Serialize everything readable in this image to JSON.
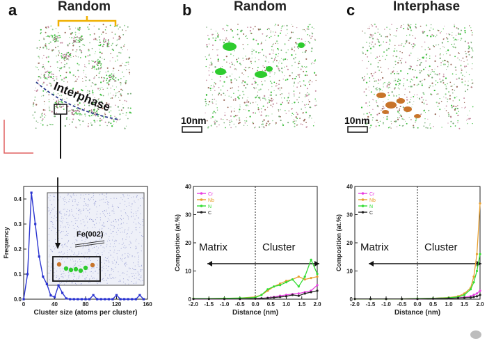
{
  "panels": {
    "a": {
      "letter": "a",
      "title": "Random",
      "interphase_label": "Interphase"
    },
    "b": {
      "letter": "b",
      "title": "Random",
      "scale_label": "10nm"
    },
    "c": {
      "letter": "c",
      "title": "Interphase",
      "scale_label": "10nm"
    }
  },
  "inset": {
    "label": "Fe(002)"
  },
  "colors": {
    "random_bracket": "#f0b000",
    "scale_bar_axes": "#e06060",
    "interphase_line": "#2b3a8c",
    "cluster_green": "#2ecc2e",
    "cluster_orange": "#c8742a",
    "cr": "#e83ee0",
    "nb": "#e8a030",
    "n": "#33dd33",
    "c": "#222222",
    "frequency_line": "#2a34d0"
  },
  "chart_data": [
    {
      "id": "frequency",
      "type": "line",
      "title": "",
      "xlabel": "Cluster size (atoms per cluster)",
      "ylabel": "Frequency",
      "xlim": [
        0,
        160
      ],
      "ylim": [
        0,
        0.45
      ],
      "xticks": [
        0,
        40,
        80,
        120,
        160
      ],
      "yticks": [
        0.0,
        0.1,
        0.2,
        0.3,
        0.4
      ],
      "xtick_labels": [
        "0",
        "40",
        "80",
        "120",
        "160"
      ],
      "ytick_labels": [
        "0.0",
        "0.1",
        "0.2",
        "0.3",
        "0.4"
      ],
      "grid": false,
      "series": [
        {
          "x": [
            0,
            5,
            10,
            15,
            20,
            25,
            30,
            35,
            40,
            45,
            50,
            55,
            60,
            65,
            70,
            75,
            80,
            85,
            90,
            95,
            100,
            105,
            110,
            115,
            120,
            125,
            130,
            135,
            140,
            145,
            150,
            155
          ],
          "y": [
            0,
            0.1,
            0.425,
            0.3,
            0.17,
            0.09,
            0.06,
            0.015,
            0.008,
            0.055,
            0.025,
            0.003,
            0,
            0,
            0,
            0,
            0,
            0,
            0.016,
            0,
            0,
            0,
            0,
            0,
            0.016,
            0,
            0,
            0,
            0,
            0,
            0.016,
            0
          ]
        }
      ]
    },
    {
      "id": "proxigram_random",
      "type": "line",
      "title": "",
      "xlabel": "Distance (nm)",
      "ylabel": "Composition (at.%)",
      "xlim": [
        -2.0,
        2.0
      ],
      "ylim": [
        0,
        40
      ],
      "xticks": [
        -2.0,
        -1.5,
        -1.0,
        -0.5,
        0.0,
        0.5,
        1.0,
        1.5,
        2.0
      ],
      "yticks": [
        0,
        10,
        20,
        30,
        40
      ],
      "xtick_labels": [
        "-2.0",
        "-1.5",
        "-1.0",
        "-0.5",
        "0.0",
        "0.5",
        "1.0",
        "1.5",
        "2.0"
      ],
      "ytick_labels": [
        "0",
        "10",
        "20",
        "30",
        "40"
      ],
      "legend": "top-left",
      "annotations": [
        "Matrix",
        "Cluster"
      ],
      "series": [
        {
          "name": "Cr",
          "x": [
            -2,
            -1.5,
            -1,
            -0.5,
            0,
            0.2,
            0.4,
            0.6,
            0.8,
            1.0,
            1.2,
            1.4,
            1.6,
            1.8,
            2.0
          ],
          "y": [
            0.1,
            0.1,
            0.1,
            0.1,
            0.2,
            0.3,
            0.5,
            0.8,
            1.2,
            1.5,
            1.8,
            2.0,
            2.5,
            3.0,
            5.0
          ]
        },
        {
          "name": "Nb",
          "x": [
            -2,
            -1.5,
            -1,
            -0.5,
            0,
            0.2,
            0.4,
            0.6,
            0.8,
            1.0,
            1.2,
            1.4,
            1.6,
            1.8,
            2.0
          ],
          "y": [
            0.2,
            0.2,
            0.3,
            0.4,
            0.8,
            1.5,
            3.0,
            4.5,
            5.5,
            6.5,
            7.0,
            8.0,
            7.0,
            7.5,
            8.0
          ]
        },
        {
          "name": "N",
          "x": [
            -2,
            -1.5,
            -1,
            -0.5,
            0,
            0.2,
            0.4,
            0.6,
            0.8,
            1.0,
            1.2,
            1.4,
            1.6,
            1.8,
            2.0
          ],
          "y": [
            0.2,
            0.2,
            0.3,
            0.4,
            0.6,
            1.5,
            3.5,
            4.5,
            5.0,
            6.0,
            7.0,
            4.5,
            8.0,
            14.0,
            9.0
          ]
        },
        {
          "name": "C",
          "x": [
            -2,
            -1.5,
            -1,
            -0.5,
            0,
            0.2,
            0.4,
            0.6,
            0.8,
            1.0,
            1.2,
            1.4,
            1.6,
            1.8,
            2.0
          ],
          "y": [
            0.1,
            0.1,
            0.1,
            0.1,
            0.2,
            0.3,
            0.4,
            0.6,
            0.8,
            1.0,
            1.5,
            1.2,
            2.0,
            2.5,
            3.0
          ]
        }
      ]
    },
    {
      "id": "proxigram_interphase",
      "type": "line",
      "title": "",
      "xlabel": "Distance (nm)",
      "ylabel": "Composition (at.%)",
      "xlim": [
        -2.0,
        2.0
      ],
      "ylim": [
        0,
        40
      ],
      "xticks": [
        -2.0,
        -1.5,
        -1.0,
        -0.5,
        0.0,
        0.5,
        1.0,
        1.5,
        2.0
      ],
      "yticks": [
        0,
        10,
        20,
        30,
        40
      ],
      "xtick_labels": [
        "-2.0",
        "-1.5",
        "-1.0",
        "-0.5",
        "0.0",
        "0.5",
        "1.0",
        "1.5",
        "2.0"
      ],
      "ytick_labels": [
        "0",
        "10",
        "20",
        "30",
        "40"
      ],
      "legend": "top-left",
      "annotations": [
        "Matrix",
        "Cluster"
      ],
      "series": [
        {
          "name": "Cr",
          "x": [
            -2,
            -1.5,
            -1,
            -0.5,
            0,
            0.5,
            1.0,
            1.3,
            1.5,
            1.7,
            1.8,
            1.9,
            2.0
          ],
          "y": [
            0.1,
            0.1,
            0.1,
            0.1,
            0.1,
            0.2,
            0.3,
            0.5,
            0.7,
            1.0,
            1.5,
            2.0,
            3.0
          ]
        },
        {
          "name": "Nb",
          "x": [
            -2,
            -1.5,
            -1,
            -0.5,
            0,
            0.5,
            1.0,
            1.3,
            1.5,
            1.7,
            1.8,
            1.9,
            2.0
          ],
          "y": [
            0.1,
            0.1,
            0.1,
            0.1,
            0.2,
            0.3,
            0.6,
            1.0,
            2.0,
            4.0,
            8.0,
            16.0,
            34.0
          ]
        },
        {
          "name": "N",
          "x": [
            -2,
            -1.5,
            -1,
            -0.5,
            0,
            0.5,
            1.0,
            1.3,
            1.5,
            1.7,
            1.8,
            1.9,
            2.0
          ],
          "y": [
            0.1,
            0.1,
            0.1,
            0.1,
            0.2,
            0.3,
            0.5,
            0.8,
            1.5,
            3.5,
            6.0,
            10.0,
            16.0
          ]
        },
        {
          "name": "C",
          "x": [
            -2,
            -1.5,
            -1,
            -0.5,
            0,
            0.5,
            1.0,
            1.3,
            1.5,
            1.7,
            1.8,
            1.9,
            2.0
          ],
          "y": [
            0.1,
            0.1,
            0.1,
            0.1,
            0.1,
            0.2,
            0.3,
            0.4,
            0.5,
            0.6,
            0.8,
            1.0,
            1.5
          ]
        }
      ]
    }
  ]
}
